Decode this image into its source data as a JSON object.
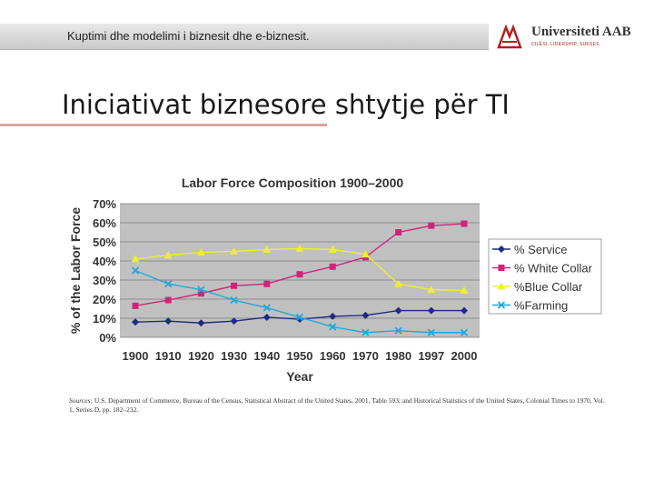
{
  "header": {
    "subtitle": "Kuptimi dhe modelimi i biznesit dhe e-biznesit.",
    "logo_name": "Universiteti AAB",
    "logo_tagline": "CILËSI, LIDERSHIP, SUKSES",
    "logo_color": "#b02020"
  },
  "slide": {
    "title": "Iniciativat biznesore shtytje për  TI"
  },
  "sources": {
    "label": "Sources:",
    "text": " U.S. Department of Commerce, Bureau of the Census, Statistical Abstract of the United States, 2001, Table 593; and Historical Statistics of the United States, Colonial Times to 1970, Vol. 1, Series D, pp. 182–232."
  },
  "chart_data": {
    "type": "line",
    "title": "Labor Force Composition 1900–2000",
    "xlabel": "Year",
    "ylabel": "% of the Labor Force",
    "categories": [
      "1900",
      "1910",
      "1920",
      "1930",
      "1940",
      "1950",
      "1960",
      "1970",
      "1980",
      "1997",
      "2000"
    ],
    "y_ticks": [
      "0%",
      "10%",
      "20%",
      "30%",
      "40%",
      "50%",
      "60%",
      "70%"
    ],
    "ylim": [
      0,
      70
    ],
    "grid": true,
    "legend_position": "right",
    "plot_background": "#c0c0c0",
    "series": [
      {
        "name": "% Service",
        "color": "#1f2a80",
        "marker": "diamond",
        "values": [
          8,
          8.5,
          7.5,
          8.5,
          10.5,
          9.5,
          11,
          11.5,
          14,
          14,
          14
        ]
      },
      {
        "name": "% White Collar",
        "color": "#d0247a",
        "marker": "square",
        "values": [
          16.5,
          19.5,
          23,
          27,
          28,
          33,
          37,
          42,
          55,
          58.5,
          59.5
        ]
      },
      {
        "name": "%Blue Collar",
        "color": "#eded3a",
        "marker": "triangle",
        "values": [
          41,
          43,
          44.5,
          45,
          46,
          46.5,
          46,
          43.5,
          28,
          25,
          24.5
        ]
      },
      {
        "name": "%Farming",
        "color": "#22a8d8",
        "marker": "x",
        "values": [
          35,
          28,
          25,
          19.5,
          15.5,
          10.5,
          5.5,
          2.5,
          3.5,
          2.5,
          2.5
        ]
      }
    ]
  }
}
